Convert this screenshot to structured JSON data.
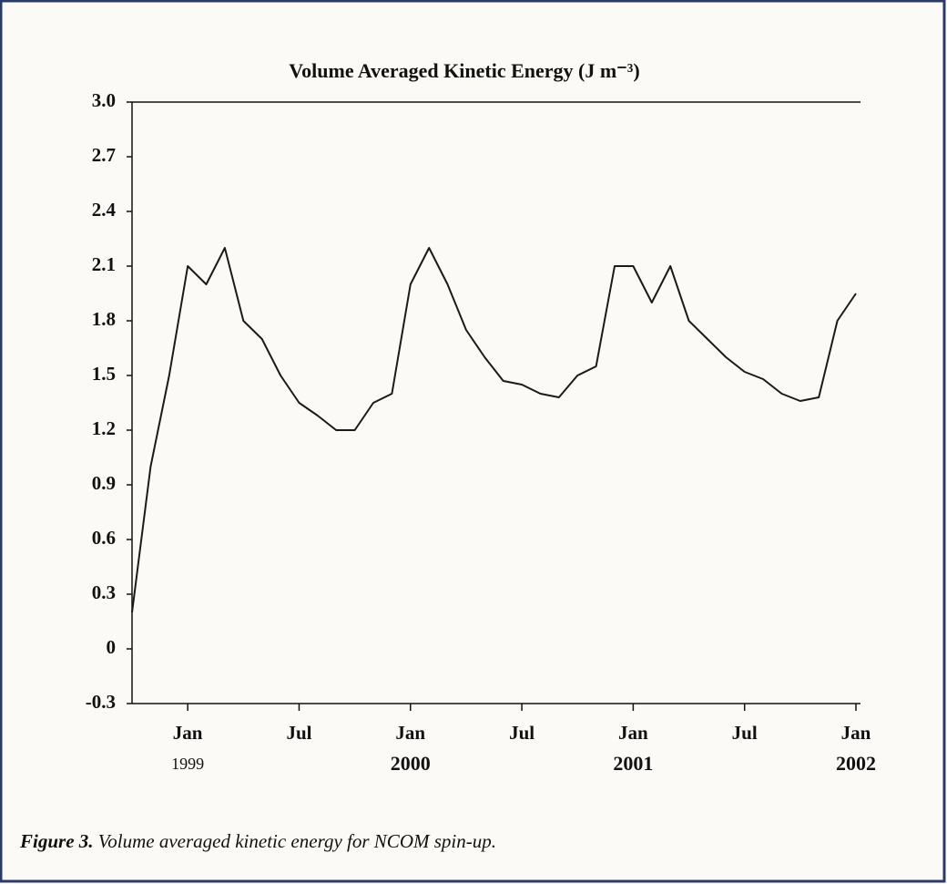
{
  "chart_data": {
    "type": "line",
    "title": "Volume Averaged Kinetic Energy  (J m⁻³)",
    "x": [
      "1998-10",
      "1998-11",
      "1998-12",
      "1999-01",
      "1999-02",
      "1999-03",
      "1999-04",
      "1999-05",
      "1999-06",
      "1999-07",
      "1999-08",
      "1999-09",
      "1999-10",
      "1999-11",
      "1999-12",
      "2000-01",
      "2000-02",
      "2000-03",
      "2000-04",
      "2000-05",
      "2000-06",
      "2000-07",
      "2000-08",
      "2000-09",
      "2000-10",
      "2000-11",
      "2000-12",
      "2001-01",
      "2001-02",
      "2001-03",
      "2001-04",
      "2001-05",
      "2001-06",
      "2001-07",
      "2001-08",
      "2001-09",
      "2001-10",
      "2001-11",
      "2001-12",
      "2002-01"
    ],
    "series": [
      {
        "name": "Kinetic energy",
        "color": "#1a1a1a",
        "values": [
          0.2,
          1.0,
          1.5,
          2.1,
          2.0,
          2.2,
          1.8,
          1.7,
          1.5,
          1.35,
          1.28,
          1.2,
          1.2,
          1.35,
          1.4,
          2.0,
          2.2,
          2.0,
          1.75,
          1.6,
          1.47,
          1.45,
          1.4,
          1.38,
          1.5,
          1.55,
          2.1,
          2.1,
          1.9,
          2.1,
          1.8,
          1.7,
          1.6,
          1.52,
          1.48,
          1.4,
          1.36,
          1.38,
          1.8,
          1.95
        ]
      }
    ],
    "xlim": [
      "1998-10",
      "2002-01"
    ],
    "xticks": [
      {
        "value": "1999-01",
        "label": "Jan"
      },
      {
        "value": "1999-07",
        "label": "Jul"
      },
      {
        "value": "2000-01",
        "label": "Jan"
      },
      {
        "value": "2000-07",
        "label": "Jul"
      },
      {
        "value": "2001-01",
        "label": "Jan"
      },
      {
        "value": "2001-07",
        "label": "Jul"
      },
      {
        "value": "2002-01",
        "label": "Jan"
      }
    ],
    "year_labels": [
      {
        "value": "1999-01",
        "label": "1999"
      },
      {
        "value": "2000-01",
        "label": "2000"
      },
      {
        "value": "2001-01",
        "label": "2001"
      },
      {
        "value": "2002-01",
        "label": "2002"
      }
    ],
    "ylim": [
      -0.3,
      3.0
    ],
    "yticks": [
      -0.3,
      0,
      0.3,
      0.6,
      0.9,
      1.2,
      1.5,
      1.8,
      2.1,
      2.4,
      2.7,
      {
        "value": 3.0,
        "label": "3.0"
      }
    ]
  },
  "caption": {
    "label": "Figure 3.",
    "text": "Volume averaged kinetic energy for NCOM spin-up."
  }
}
